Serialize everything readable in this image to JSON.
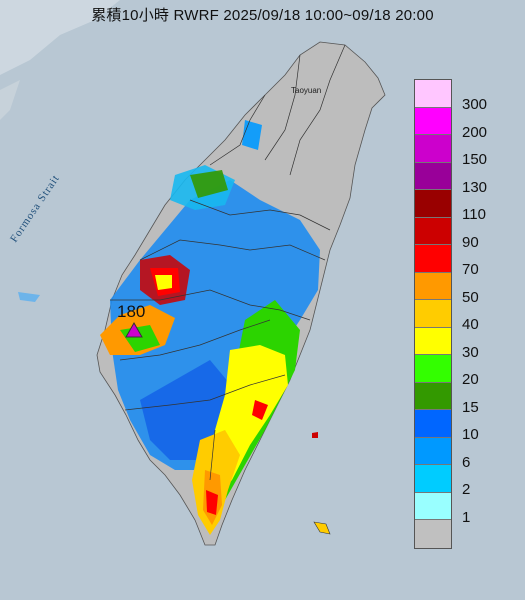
{
  "title": "累積10小時 RWRF 2025/09/18 10:00~09/18 20:00",
  "map_labels": {
    "strait": "Formosa Strait",
    "city_taoyuan": "Taoyuan",
    "peak_value": "180"
  },
  "legend": {
    "items": [
      {
        "label": "300",
        "color": "#ffc6ff"
      },
      {
        "label": "200",
        "color": "#ff00ff"
      },
      {
        "label": "150",
        "color": "#cc00cc"
      },
      {
        "label": "130",
        "color": "#990099"
      },
      {
        "label": "110",
        "color": "#990000"
      },
      {
        "label": "90",
        "color": "#cc0000"
      },
      {
        "label": "70",
        "color": "#ff0000"
      },
      {
        "label": "50",
        "color": "#ff9900"
      },
      {
        "label": "40",
        "color": "#ffcc00"
      },
      {
        "label": "30",
        "color": "#ffff00"
      },
      {
        "label": "20",
        "color": "#33ff00"
      },
      {
        "label": "15",
        "color": "#339900"
      },
      {
        "label": "10",
        "color": "#0066ff"
      },
      {
        "label": "6",
        "color": "#0099ff"
      },
      {
        "label": "2",
        "color": "#00ccff"
      },
      {
        "label": "1",
        "color": "#99ffff"
      },
      {
        "label": "",
        "color": "#c0c0c0"
      }
    ]
  },
  "colors": {
    "sea": "#b9c8d4",
    "land_grey": "#bdbdbd",
    "marker": "#cc00cc"
  }
}
